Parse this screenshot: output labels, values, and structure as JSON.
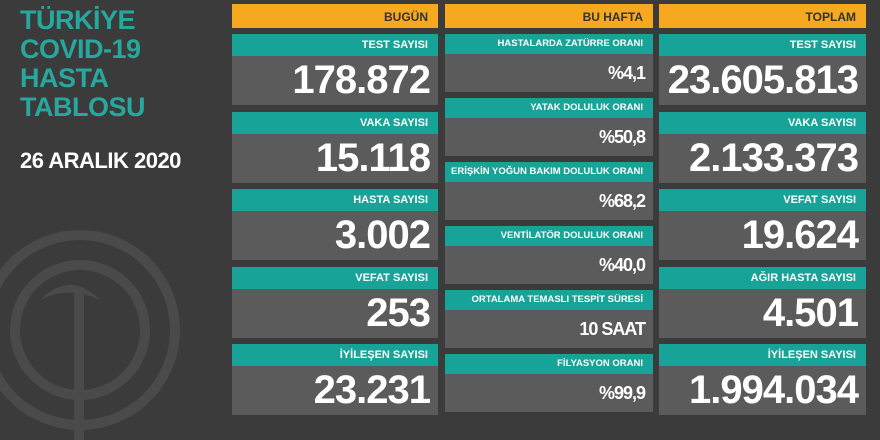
{
  "header": {
    "title_lines": [
      "TÜRKİYE",
      "COVID-19",
      "HASTA",
      "TABLOSU"
    ],
    "date": "26 ARALIK 2020"
  },
  "columns": [
    {
      "title": "BUGÜN",
      "rows": [
        {
          "label": "TEST SAYISI",
          "value": "178.872"
        },
        {
          "label": "VAKA SAYISI",
          "value": "15.118"
        },
        {
          "label": "HASTA SAYISI",
          "value": "3.002"
        },
        {
          "label": "VEFAT SAYISI",
          "value": "253"
        },
        {
          "label": "İYİLEŞEN SAYISI",
          "value": "23.231"
        }
      ]
    },
    {
      "title": "BU HAFTA",
      "rows": [
        {
          "label": "HASTALARDA ZATÜRRE ORANI",
          "value": "%4,1"
        },
        {
          "label": "YATAK DOLULUK ORANI",
          "value": "%50,8"
        },
        {
          "label": "ERİŞKİN YOĞUN BAKIM DOLULUK ORANI",
          "value": "%68,2"
        },
        {
          "label": "VENTİLATÖR DOLULUK ORANI",
          "value": "%40,0"
        },
        {
          "label": "ORTALAMA TEMASLI TESPİT SÜRESİ",
          "value": "10 SAAT"
        },
        {
          "label": "FİLYASYON ORANI",
          "value": "%99,9"
        }
      ]
    },
    {
      "title": "TOPLAM",
      "rows": [
        {
          "label": "TEST SAYISI",
          "value": "23.605.813"
        },
        {
          "label": "VAKA SAYISI",
          "value": "2.133.373"
        },
        {
          "label": "VEFAT SAYISI",
          "value": "19.624"
        },
        {
          "label": "AĞIR HASTA SAYISI",
          "value": "4.501"
        },
        {
          "label": "İYİLEŞEN SAYISI",
          "value": "1.994.034"
        }
      ]
    }
  ]
}
